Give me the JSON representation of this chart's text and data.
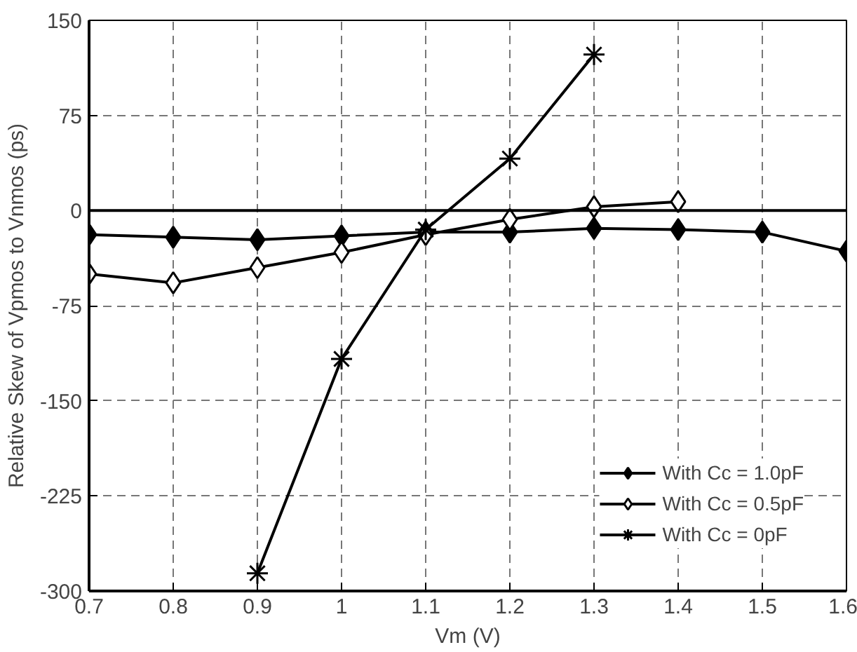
{
  "chart_data": {
    "type": "line",
    "xlabel": "Vm (V)",
    "ylabel": "Relative Skew of Vpmos to Vnmos (ps)",
    "x": [
      0.7,
      0.8,
      0.9,
      1.0,
      1.1,
      1.2,
      1.3,
      1.4,
      1.5,
      1.6
    ],
    "series": [
      {
        "name": "With Cc = 1.0pF",
        "color": "#000000",
        "marker": "diamond",
        "values": [
          -19,
          -21,
          -23,
          -20,
          -17,
          -17,
          -14,
          -15,
          -17,
          -32
        ]
      },
      {
        "name": "With Cc = 0.5pF",
        "color": "#ffffff",
        "marker": "diamond",
        "values": [
          -50,
          -57,
          -45,
          -33,
          -19,
          -7,
          3,
          7,
          null,
          null
        ]
      },
      {
        "name": "With Cc = 0pF",
        "color": "#000000",
        "marker": "cross",
        "values": [
          null,
          null,
          -286,
          -117,
          -15,
          41,
          123,
          null,
          null,
          null
        ]
      }
    ],
    "xlim": [
      0.7,
      1.6
    ],
    "ylim": [
      -300,
      150
    ],
    "xticks": [
      0.7,
      0.8,
      0.9,
      {
        "value": 1.0,
        "label": "1"
      },
      1.1,
      1.2,
      1.3,
      1.4,
      1.5,
      1.6
    ],
    "yticks": [
      -300,
      -225,
      -150,
      -75,
      0,
      75,
      150
    ],
    "ref_lines": [
      {
        "axis": "y",
        "value": 0,
        "label": null
      }
    ],
    "grid": true,
    "legend": "bottom right",
    "line_style": "solid"
  }
}
